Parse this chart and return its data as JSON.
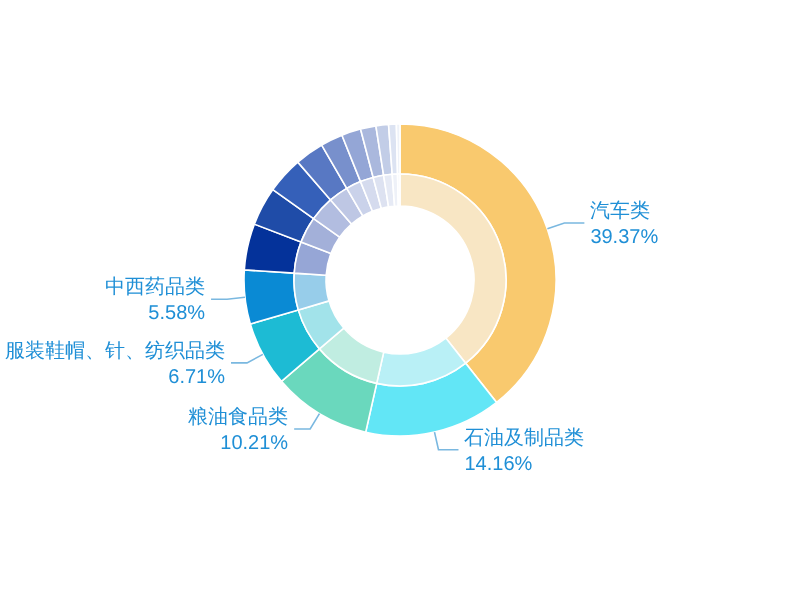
{
  "chart_data": {
    "type": "donut",
    "categories": [
      "汽车类",
      "石油及制品类",
      "粮油食品类",
      "服装鞋帽、针、纺织品类",
      "中西药品类",
      null,
      null,
      null,
      null,
      null,
      null,
      null,
      null,
      null,
      null
    ],
    "series": [
      {
        "values": [
          39.37,
          14.16,
          10.21,
          6.71,
          5.58,
          4.8,
          4.0,
          3.8,
          3.0,
          2.3,
          2.0,
          1.6,
          1.3,
          0.8,
          0.37
        ],
        "value_labels": [
          "39.37%",
          "14.16%",
          "10.21%",
          "6.71%",
          "5.58%",
          null,
          null,
          null,
          null,
          null,
          null,
          null,
          null,
          null,
          null
        ],
        "colors": [
          "#f9c96e",
          "#62e6f6",
          "#6ad8bd",
          "#1dbbd4",
          "#0a8ad4",
          "#04329a",
          "#1f4ca8",
          "#3560b9",
          "#5878c3",
          "#7890cc",
          "#94a6d6",
          "#aab8dd",
          "#c2cde7",
          "#dce3f2",
          "#eef2f9"
        ]
      },
      {
        "values": [
          39.37,
          14.16,
          10.21,
          6.71,
          5.58,
          4.8,
          4.0,
          3.8,
          3.0,
          2.3,
          2.0,
          1.6,
          1.3,
          0.8,
          0.37
        ],
        "colors": [
          "#f8e6c4",
          "#b9f0f6",
          "#c0ede1",
          "#a2e3ea",
          "#97cdea",
          "#96a6d6",
          "#a3b0d9",
          "#b2bde0",
          "#bec7e4",
          "#cad2ea",
          "#d5dbee",
          "#dde2f1",
          "#e6eaf5",
          "#eef1f8",
          "#f6f8fc"
        ]
      }
    ]
  }
}
